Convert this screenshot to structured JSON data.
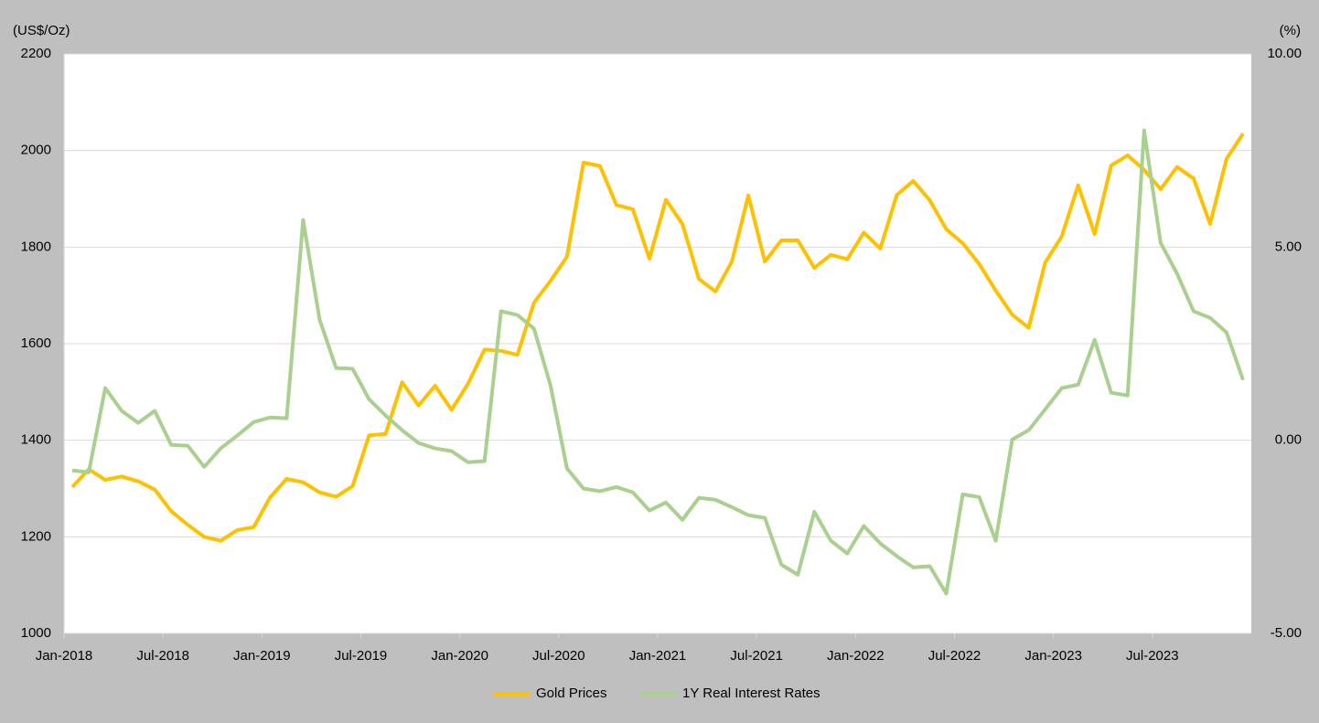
{
  "chart_data": {
    "type": "line",
    "y_label": "(US$/Oz)",
    "y2_label": "(%)",
    "categories": [
      "Jan-2018",
      null,
      null,
      null,
      null,
      null,
      "Jul-2018",
      null,
      null,
      null,
      null,
      null,
      "Jan-2019",
      null,
      null,
      null,
      null,
      null,
      "Jul-2019",
      null,
      null,
      null,
      null,
      null,
      "Jan-2020",
      null,
      null,
      null,
      null,
      null,
      "Jul-2020",
      null,
      null,
      null,
      null,
      null,
      "Jan-2021",
      null,
      null,
      null,
      null,
      null,
      "Jul-2021",
      null,
      null,
      null,
      null,
      null,
      "Jan-2022",
      null,
      null,
      null,
      null,
      null,
      "Jul-2022",
      null,
      null,
      null,
      null,
      null,
      "Jan-2023",
      null,
      null,
      null,
      null,
      null,
      "Jul-2023",
      null,
      null,
      null,
      null,
      null
    ],
    "series": [
      {
        "name": "Gold Prices",
        "color": "#ffc000",
        "axis": "y",
        "values": [
          1303,
          1340,
          1318,
          1325,
          1315,
          1298,
          1253,
          1225,
          1200,
          1192,
          1214,
          1220,
          1282,
          1320,
          1313,
          1292,
          1283,
          1305,
          1410,
          1413,
          1520,
          1472,
          1513,
          1463,
          1517,
          1588,
          1585,
          1577,
          1685,
          1730,
          1780,
          1975,
          1968,
          1887,
          1878,
          1776,
          1898,
          1848,
          1734,
          1708,
          1770,
          1907,
          1770,
          1814,
          1814,
          1757,
          1784,
          1775,
          1830,
          1797,
          1908,
          1937,
          1897,
          1837,
          1808,
          1765,
          1710,
          1660,
          1633,
          1768,
          1822,
          1928,
          1827,
          1969,
          1990,
          1960,
          1920,
          1966,
          1942,
          1848,
          1983,
          2035
        ]
      },
      {
        "name": "1Y Real Interest Rates",
        "color": "#a9d08e",
        "axis": "y2",
        "values": [
          -0.78,
          -0.83,
          1.35,
          0.76,
          0.45,
          0.76,
          -0.12,
          -0.14,
          -0.69,
          -0.21,
          0.12,
          0.47,
          0.59,
          0.57,
          5.7,
          3.12,
          1.87,
          1.85,
          1.06,
          0.64,
          0.26,
          -0.07,
          -0.21,
          -0.28,
          -0.57,
          -0.54,
          3.34,
          3.24,
          2.89,
          1.42,
          -0.73,
          -1.25,
          -1.32,
          -1.21,
          -1.35,
          -1.82,
          -1.61,
          -2.06,
          -1.49,
          -1.54,
          -1.73,
          -1.94,
          -2.01,
          -3.22,
          -3.48,
          -1.85,
          -2.6,
          -2.93,
          -2.22,
          -2.67,
          -3.0,
          -3.29,
          -3.26,
          -3.97,
          -1.4,
          -1.47,
          -2.6,
          0.02,
          0.26,
          0.8,
          1.35,
          1.44,
          2.6,
          1.23,
          1.16,
          8.02,
          5.11,
          4.31,
          3.34,
          3.17,
          2.79,
          1.56
        ]
      }
    ],
    "ylim": [
      1000,
      2200
    ],
    "yticks": [
      1000,
      1200,
      1400,
      1600,
      1800,
      2000,
      2200
    ],
    "y2lim": [
      -5,
      10
    ],
    "y2ticks": [
      {
        "value": -5,
        "label": "-5.00"
      },
      {
        "value": 0,
        "label": "0.00"
      },
      {
        "value": 5,
        "label": "5.00"
      },
      {
        "value": 10,
        "label": "10.00"
      }
    ],
    "grid": true,
    "legend": "bottom"
  }
}
